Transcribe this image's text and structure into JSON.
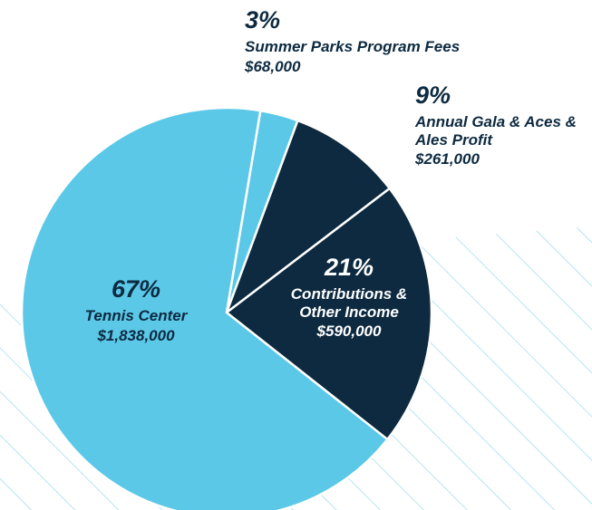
{
  "chart_data": {
    "type": "pie",
    "categories": [
      "Summer Parks Program Fees",
      "Annual Gala & Aces & Ales Profit",
      "Contributions & Other Income",
      "Tennis Center"
    ],
    "values": [
      3,
      9,
      21,
      67
    ],
    "value_labels": [
      "3%",
      "9%",
      "21%",
      "67%"
    ],
    "amount_labels": [
      "$68,000",
      "$261,000",
      "$590,000",
      "$1,838,000"
    ],
    "colors": [
      "#5bc8e8",
      "#0d2a40",
      "#0d2a40",
      "#5bc8e8"
    ],
    "label_colors": [
      "#0d2a40",
      "#0d2a40",
      "#ffffff",
      "#0d2a40"
    ]
  }
}
